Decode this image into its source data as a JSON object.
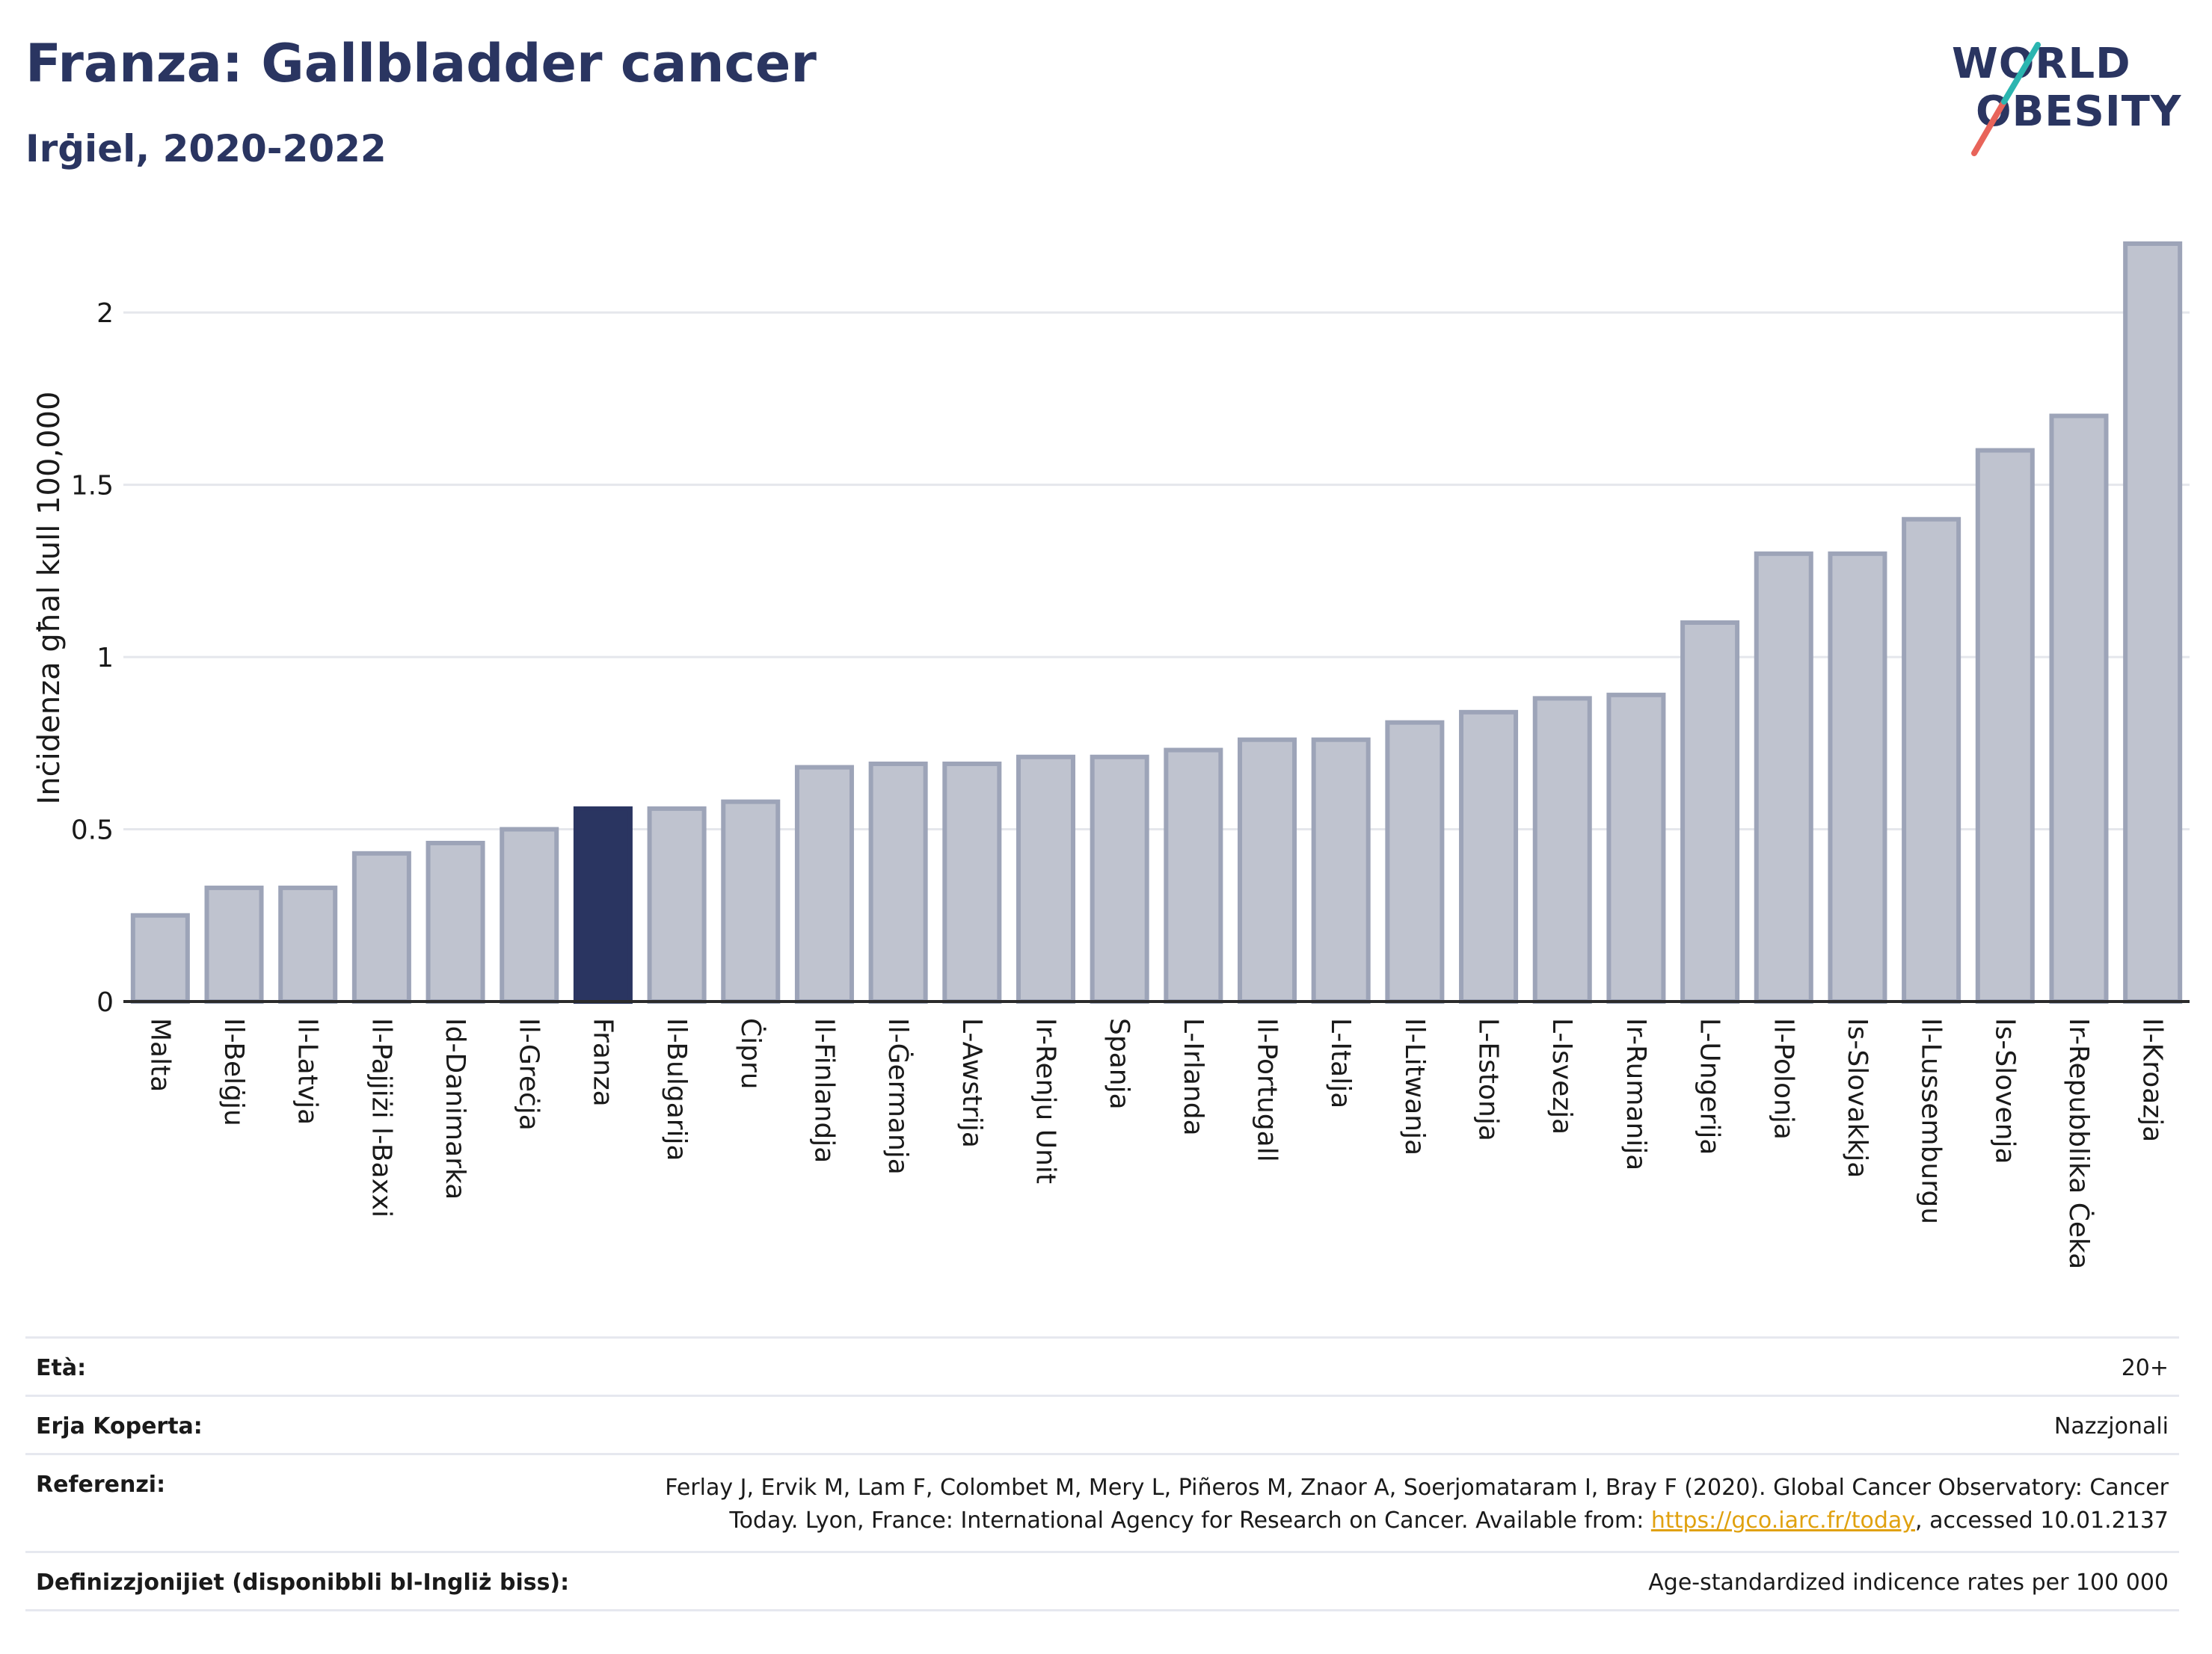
{
  "title": "Franza: Gallbladder cancer",
  "subtitle": "Irġiel, 2020-2022",
  "logo": {
    "line1": "WORLD",
    "line2": "OBESITY"
  },
  "colors": {
    "bar": "#bfc3cf",
    "bar_stroke": "#9da4b8",
    "highlight": "#2a3561",
    "grid": "#e5e7ec",
    "axis": "#2b2b2b"
  },
  "chart_data": {
    "type": "bar",
    "ylabel": "Inċidenza għal kull 100,000",
    "ylim": [
      0,
      2.2
    ],
    "yticks": [
      0,
      0.5,
      1,
      1.5,
      2
    ],
    "ytick_labels": [
      "0",
      "0.5",
      "1",
      "1.5",
      "2"
    ],
    "grid": true,
    "highlight": "Franza",
    "categories": [
      "Malta",
      "Il-Belġju",
      "Il-Latvja",
      "Il-Pajjiżi l-Baxxi",
      "Id-Danimarka",
      "Il-Greċja",
      "Franza",
      "Il-Bulgarija",
      "Ċipru",
      "Il-Finlandja",
      "Il-Ġermanja",
      "L-Awstrija",
      "Ir-Renju Unit",
      "Spanja",
      "L-Irlanda",
      "Il-Portugall",
      "L-Italja",
      "Il-Litwanja",
      "L-Estonja",
      "L-Isvezja",
      "Ir-Rumanija",
      "L-Ungerija",
      "Il-Polonja",
      "Is-Slovakkja",
      "Il-Lussemburgu",
      "Is-Slovenja",
      "Ir-Repubblika Ċeka",
      "Il-Kroazja"
    ],
    "values": [
      0.25,
      0.33,
      0.33,
      0.43,
      0.46,
      0.5,
      0.56,
      0.56,
      0.58,
      0.68,
      0.69,
      0.69,
      0.71,
      0.71,
      0.73,
      0.76,
      0.76,
      0.81,
      0.84,
      0.88,
      0.89,
      1.1,
      1.3,
      1.3,
      1.4,
      1.6,
      1.7,
      2.2
    ]
  },
  "info": {
    "age_label": "Età:",
    "age_value": "20+",
    "area_label": "Erja Koperta:",
    "area_value": "Nazzjonali",
    "ref_label": "Referenzi:",
    "ref_line1": "Ferlay J, Ervik M, Lam F, Colombet M, Mery L, Piñeros M, Znaor A, Soerjomataram I, Bray F (2020). Global Cancer Observatory: Cancer",
    "ref_line2_pre": "Today. Lyon, France: International Agency for Research on Cancer. Available from: ",
    "ref_link": "https://gco.iarc.fr/today",
    "ref_line2_post": ", accessed 10.01.2137",
    "def_label": "Definizzjonijiet (disponibbli bl-Ingliż biss):",
    "def_value": "Age-standardized indicence rates per 100 000"
  }
}
